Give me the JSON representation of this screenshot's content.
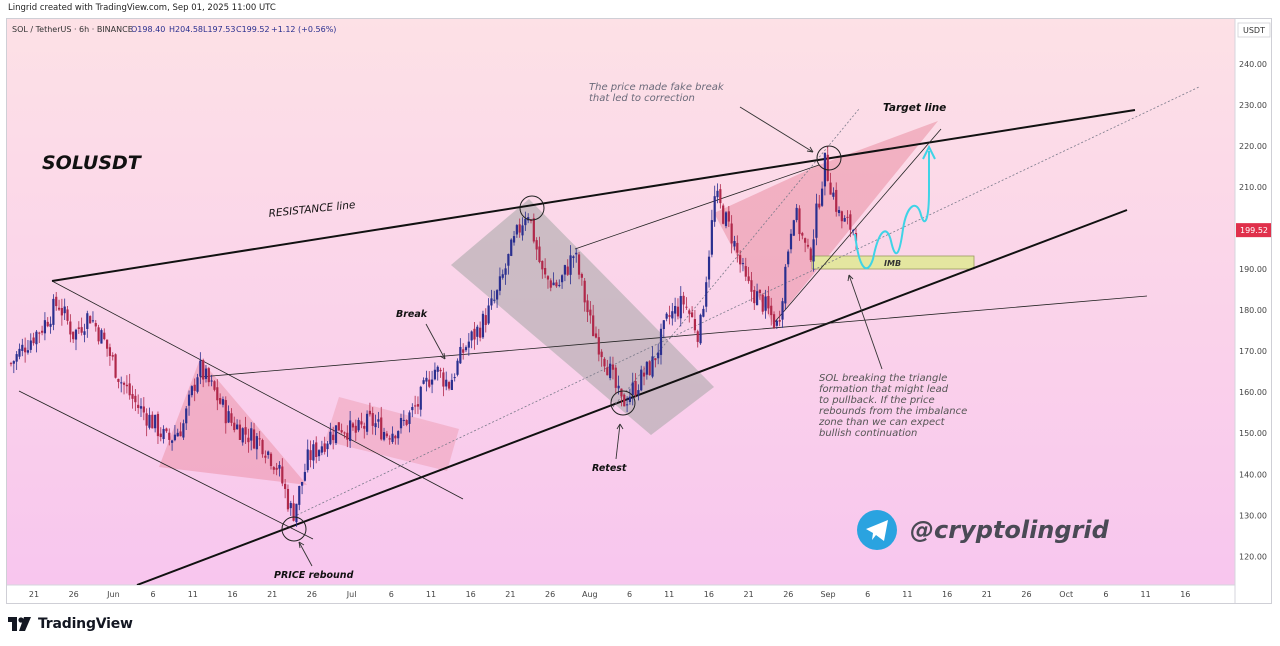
{
  "header": {
    "credit": "Lingrid created with TradingView.com, Sep 01, 2025 11:00 UTC",
    "symbol_line": "SOL / TetherUS · 6h · BINANCE",
    "open": "O198.40",
    "high": "H204.58",
    "low": "L197.53",
    "close": "C199.52",
    "change": "+1.12 (+0.56%)"
  },
  "chart_title": "SOLUSDT",
  "annotations": {
    "resistance": "RESISTANCE line",
    "target": "Target line",
    "fake_break": [
      "The price made fake break",
      "that led to correction"
    ],
    "break": "Break",
    "retest": "Retest",
    "rebound": "PRICE rebound",
    "imb": "IMB",
    "analysis": [
      "SOL breaking the triangle",
      "formation that might lead",
      "to pullback. If the price",
      "rebounds from the imbalance",
      "zone than we can expect",
      "bullish continuation"
    ],
    "handle": "@cryptolingrid"
  },
  "footer": {
    "brand": "TradingView"
  },
  "colors": {
    "up": "#2a2f8f",
    "down": "#b0284a",
    "accent_path": "#3fd3e6",
    "price_tag": "#e0304b",
    "telegram": "#2aa3e0"
  },
  "chart_data": {
    "type": "candlestick",
    "symbol": "SOL / TetherUS",
    "interval": "6h",
    "exchange": "BINANCE",
    "currency": "USDT",
    "last_price": 199.52,
    "ylim": [
      113,
      251
    ],
    "y_ticks": [
      "120.00",
      "130.00",
      "140.00",
      "150.00",
      "160.00",
      "170.00",
      "180.00",
      "190.00",
      "200.00",
      "210.00",
      "220.00",
      "230.00",
      "240.00"
    ],
    "x_ticks": [
      "21",
      "26",
      "Jun",
      "6",
      "11",
      "16",
      "21",
      "26",
      "Jul",
      "6",
      "11",
      "16",
      "21",
      "26",
      "Aug",
      "6",
      "11",
      "16",
      "21",
      "26",
      "Sep",
      "6",
      "11",
      "16",
      "21",
      "26",
      "Oct",
      "6",
      "11",
      "16"
    ],
    "close_path": [
      {
        "date": "May 17",
        "close": 167
      },
      {
        "date": "May 19",
        "close": 172
      },
      {
        "date": "May 21",
        "close": 176
      },
      {
        "date": "May 23",
        "close": 182
      },
      {
        "date": "May 25",
        "close": 174
      },
      {
        "date": "May 27",
        "close": 179
      },
      {
        "date": "May 29",
        "close": 172
      },
      {
        "date": "May 31",
        "close": 163
      },
      {
        "date": "Jun 3",
        "close": 157
      },
      {
        "date": "Jun 5",
        "close": 153
      },
      {
        "date": "Jun 7",
        "close": 148
      },
      {
        "date": "Jun 9",
        "close": 152
      },
      {
        "date": "Jun 11",
        "close": 166
      },
      {
        "date": "Jun 13",
        "close": 160
      },
      {
        "date": "Jun 15",
        "close": 153
      },
      {
        "date": "Jun 17",
        "close": 150
      },
      {
        "date": "Jun 19",
        "close": 148
      },
      {
        "date": "Jun 21",
        "close": 142
      },
      {
        "date": "Jun 23",
        "close": 130
      },
      {
        "date": "Jun 25",
        "close": 144
      },
      {
        "date": "Jun 27",
        "close": 148
      },
      {
        "date": "Jun 29",
        "close": 152
      },
      {
        "date": "Jul 1",
        "close": 150
      },
      {
        "date": "Jul 3",
        "close": 153
      },
      {
        "date": "Jul 5",
        "close": 150
      },
      {
        "date": "Jul 7",
        "close": 152
      },
      {
        "date": "Jul 9",
        "close": 157
      },
      {
        "date": "Jul 11",
        "close": 166
      },
      {
        "date": "Jul 13",
        "close": 162
      },
      {
        "date": "Jul 15",
        "close": 171
      },
      {
        "date": "Jul 17",
        "close": 176
      },
      {
        "date": "Jul 19",
        "close": 183
      },
      {
        "date": "Jul 21",
        "close": 195
      },
      {
        "date": "Jul 22",
        "close": 205
      },
      {
        "date": "Jul 24",
        "close": 188
      },
      {
        "date": "Jul 26",
        "close": 186
      },
      {
        "date": "Jul 28",
        "close": 194
      },
      {
        "date": "Jul 30",
        "close": 177
      },
      {
        "date": "Aug 1",
        "close": 168
      },
      {
        "date": "Aug 3",
        "close": 157
      },
      {
        "date": "Aug 5",
        "close": 162
      },
      {
        "date": "Aug 7",
        "close": 167
      },
      {
        "date": "Aug 9",
        "close": 178
      },
      {
        "date": "Aug 11",
        "close": 182
      },
      {
        "date": "Aug 12",
        "close": 174
      },
      {
        "date": "Aug 14",
        "close": 208
      },
      {
        "date": "Aug 16",
        "close": 199
      },
      {
        "date": "Aug 18",
        "close": 186
      },
      {
        "date": "Aug 20",
        "close": 182
      },
      {
        "date": "Aug 22",
        "close": 176
      },
      {
        "date": "Aug 24",
        "close": 205
      },
      {
        "date": "Aug 26",
        "close": 192
      },
      {
        "date": "Aug 28",
        "close": 216
      },
      {
        "date": "Aug 30",
        "close": 202
      },
      {
        "date": "Sep 1",
        "close": 199.5
      }
    ]
  }
}
